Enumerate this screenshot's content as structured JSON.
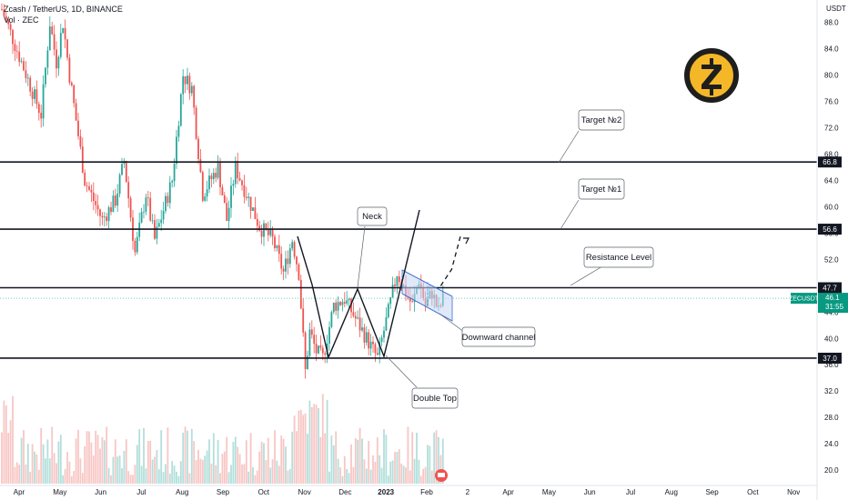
{
  "chart_data": {
    "type": "candlestick",
    "legend": {
      "title": "Zcash / TetherUS, 1D, BINANCE",
      "volume_label": "Vol · ZEC"
    },
    "currency": "USDT",
    "symbol_tag": "ZECUSDT",
    "last_price": "46.1",
    "countdown": "31:55",
    "ylim": [
      17.8,
      91.0
    ],
    "y_ticks": [
      "88.0",
      "84.0",
      "80.0",
      "76.0",
      "72.0",
      "68.0",
      "64.0",
      "60.0",
      "56.0",
      "52.0",
      "48.0",
      "44.0",
      "40.0",
      "36.0",
      "32.0",
      "28.0",
      "24.0",
      "20.0"
    ],
    "x_ticks": [
      "Apr",
      "May",
      "Jun",
      "Jul",
      "Aug",
      "Sep",
      "Oct",
      "Nov",
      "Dec",
      "2023",
      "Feb",
      "2",
      "Apr",
      "May",
      "Jun",
      "Jul",
      "Aug",
      "Sep",
      "Oct",
      "Nov"
    ],
    "levels": [
      {
        "value": 66.8,
        "label": "66.8"
      },
      {
        "value": 56.6,
        "label": "56.6"
      },
      {
        "value": 47.7,
        "label": "47.7"
      },
      {
        "value": 37.0,
        "label": "37.0"
      }
    ],
    "callouts": {
      "target2": "Target №2",
      "target1": "Target №1",
      "resistance": "Resistance Level",
      "neck": "Neck",
      "channel": "Downward channel",
      "double_top": "Double Top"
    },
    "colors": {
      "up": "#26a69a",
      "down": "#ef5350",
      "vol_up": "#b2dfdb",
      "vol_down": "#f7c6c4",
      "channel_fill": "#c5d7f5",
      "channel_stroke": "#3c6dd1",
      "price_tag": "#089981",
      "zcash_gold": "#f4b728"
    },
    "price_path": [
      {
        "t": 0,
        "p": 90
      },
      {
        "t": 18,
        "p": 74
      },
      {
        "t": 22,
        "p": 88
      },
      {
        "t": 25,
        "p": 82
      },
      {
        "t": 28,
        "p": 88
      },
      {
        "t": 31,
        "p": 80
      },
      {
        "t": 38,
        "p": 64
      },
      {
        "t": 46,
        "p": 58
      },
      {
        "t": 52,
        "p": 61
      },
      {
        "t": 56,
        "p": 67
      },
      {
        "t": 61,
        "p": 53
      },
      {
        "t": 66,
        "p": 62
      },
      {
        "t": 70,
        "p": 55
      },
      {
        "t": 78,
        "p": 64
      },
      {
        "t": 83,
        "p": 80
      },
      {
        "t": 87,
        "p": 78
      },
      {
        "t": 92,
        "p": 62
      },
      {
        "t": 99,
        "p": 66
      },
      {
        "t": 103,
        "p": 58
      },
      {
        "t": 107,
        "p": 66
      },
      {
        "t": 112,
        "p": 62
      },
      {
        "t": 118,
        "p": 57
      },
      {
        "t": 124,
        "p": 55
      },
      {
        "t": 129,
        "p": 50
      },
      {
        "t": 133,
        "p": 55
      },
      {
        "t": 136,
        "p": 50
      },
      {
        "t": 139,
        "p": 35
      },
      {
        "t": 141,
        "p": 41
      },
      {
        "t": 144,
        "p": 38
      },
      {
        "t": 147,
        "p": 37
      },
      {
        "t": 152,
        "p": 45
      },
      {
        "t": 157,
        "p": 46
      },
      {
        "t": 162,
        "p": 43
      },
      {
        "t": 167,
        "p": 40
      },
      {
        "t": 172,
        "p": 37
      },
      {
        "t": 177,
        "p": 44
      },
      {
        "t": 181,
        "p": 50
      },
      {
        "t": 185,
        "p": 47
      },
      {
        "t": 188,
        "p": 45
      },
      {
        "t": 191,
        "p": 49
      },
      {
        "t": 194,
        "p": 45
      },
      {
        "t": 197,
        "p": 47
      },
      {
        "t": 200,
        "p": 44
      },
      {
        "t": 202,
        "p": 46.1
      }
    ],
    "projection": [
      {
        "t": 201,
        "p": 48
      },
      {
        "t": 206,
        "p": 50.5
      },
      {
        "t": 210,
        "p": 55.5
      }
    ]
  }
}
